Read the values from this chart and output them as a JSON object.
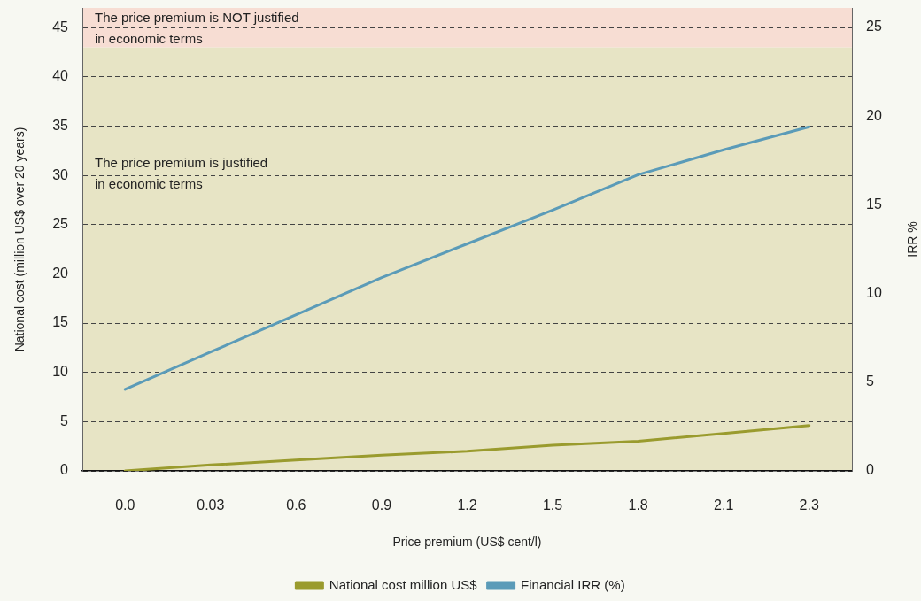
{
  "chart_data": {
    "type": "line",
    "xlabel": "Price premium (US$ cent/l)",
    "ylabel": "National cost (million US$ over 20 years)",
    "y2label": "IRR %",
    "categories": [
      "0.0",
      "0.03",
      "0.6",
      "0.9",
      "1.2",
      "1.5",
      "1.8",
      "2.1",
      "2.3"
    ],
    "series": [
      {
        "name": "National cost million US$",
        "color": "#9a9b2e",
        "values": [
          0,
          0.6,
          1.1,
          1.6,
          2.0,
          2.6,
          3.0,
          3.8,
          4.6
        ]
      },
      {
        "name": "Financial IRR (%)",
        "color": "#5b9bb8",
        "axis": "y2",
        "values": [
          4.6,
          6.7,
          8.8,
          10.9,
          12.8,
          14.7,
          16.7,
          18.1,
          19.4
        ]
      }
    ],
    "ylim": [
      0,
      47
    ],
    "yticks": [
      0,
      5,
      10,
      15,
      20,
      25,
      30,
      35,
      40,
      45
    ],
    "y2lim": [
      0,
      26.1
    ],
    "y2ticks": [
      0,
      5,
      10,
      15,
      20,
      25
    ],
    "bands": [
      {
        "axis": "y",
        "from": 0,
        "to": 43,
        "color": "#e7e4c5",
        "label": "The price premium is justified\nin economic terms"
      },
      {
        "axis": "y",
        "from": 43,
        "to": 47,
        "color": "#f7ddd3",
        "label": "The price premium is NOT justified\nin economic terms"
      }
    ],
    "grid": "y",
    "legend": "bottom"
  }
}
